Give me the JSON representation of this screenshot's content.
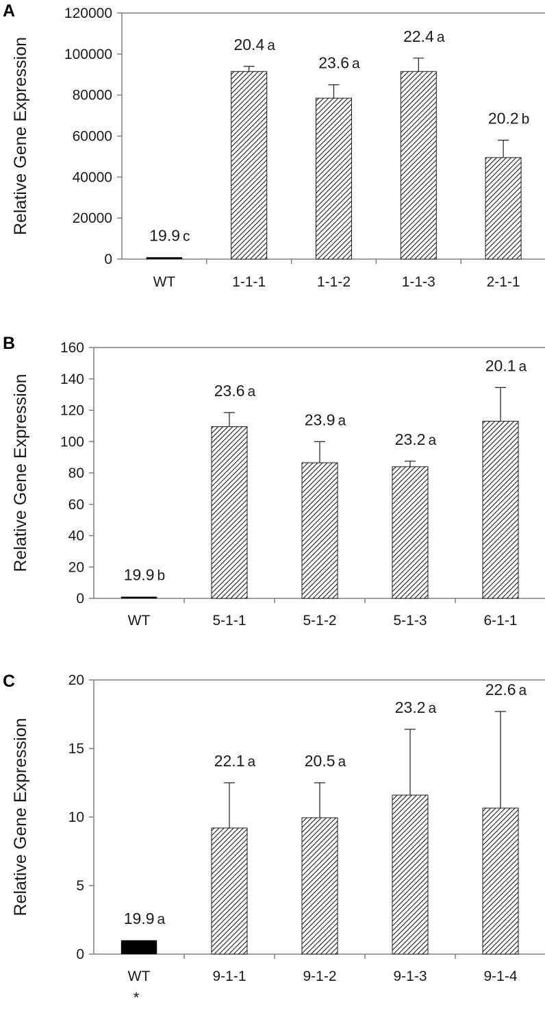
{
  "chart_data": [
    {
      "panel": "A",
      "type": "bar",
      "ylabel": "Relative Gene Expression",
      "ylim": [
        0,
        120000
      ],
      "yticks": [
        0,
        20000,
        40000,
        60000,
        80000,
        100000,
        120000
      ],
      "categories": [
        "WT",
        "1-1-1",
        "1-1-2",
        "1-1-3",
        "2-1-1"
      ],
      "values": [
        1,
        91500,
        78500,
        91500,
        49500
      ],
      "errors": [
        0,
        2500,
        6500,
        6500,
        8500
      ],
      "fills": [
        "solid",
        "hatched",
        "hatched",
        "hatched",
        "hatched"
      ],
      "annotations": [
        {
          "value": "19.9",
          "letter": "c"
        },
        {
          "value": "20.4",
          "letter": "a"
        },
        {
          "value": "23.6",
          "letter": "a"
        },
        {
          "value": "22.4",
          "letter": "a"
        },
        {
          "value": "20.2",
          "letter": "b"
        }
      ]
    },
    {
      "panel": "B",
      "type": "bar",
      "ylabel": "Relative Gene Expression",
      "ylim": [
        0,
        160
      ],
      "yticks": [
        0,
        20,
        40,
        60,
        80,
        100,
        120,
        140,
        160
      ],
      "categories": [
        "WT",
        "5-1-1",
        "5-1-2",
        "5-1-3",
        "6-1-1"
      ],
      "values": [
        1,
        109.5,
        86.5,
        84,
        113
      ],
      "errors": [
        0,
        9,
        13.5,
        3.5,
        21.5
      ],
      "fills": [
        "solid",
        "hatched",
        "hatched",
        "hatched",
        "hatched"
      ],
      "annotations": [
        {
          "value": "19.9",
          "letter": "b"
        },
        {
          "value": "23.6",
          "letter": "a"
        },
        {
          "value": "23.9",
          "letter": "a"
        },
        {
          "value": "23.2",
          "letter": "a"
        },
        {
          "value": "20.1",
          "letter": "a"
        }
      ]
    },
    {
      "panel": "C",
      "type": "bar",
      "ylabel": "Relative Gene Expression",
      "ylim": [
        0,
        20
      ],
      "yticks": [
        0,
        5,
        10,
        15,
        20
      ],
      "categories": [
        "WT",
        "9-1-1",
        "9-1-2",
        "9-1-3",
        "9-1-4"
      ],
      "values": [
        1,
        9.2,
        9.95,
        11.6,
        10.65
      ],
      "errors": [
        0,
        3.3,
        2.55,
        4.8,
        7.05
      ],
      "fills": [
        "solid",
        "hatched",
        "hatched",
        "hatched",
        "hatched"
      ],
      "annotations": [
        {
          "value": "19.9",
          "letter": "a"
        },
        {
          "value": "22.1",
          "letter": "a"
        },
        {
          "value": "20.5",
          "letter": "a"
        },
        {
          "value": "23.2",
          "letter": "a"
        },
        {
          "value": "22.6",
          "letter": "a"
        }
      ],
      "footnote": "*"
    }
  ],
  "colors": {
    "axis": "#7f7f7f",
    "bar_stroke": "#1a1a1a",
    "solid_fill": "#000000",
    "text": "#1a1a1a"
  }
}
